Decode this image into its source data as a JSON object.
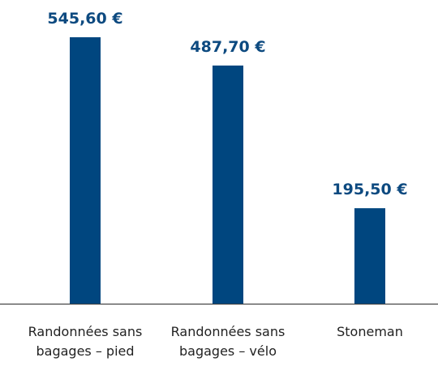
{
  "chart_data": {
    "type": "bar",
    "categories": [
      "Randonnées sans bagages – pied",
      "Randonnées sans bagages – vélo",
      "Stoneman"
    ],
    "values": [
      545.6,
      487.7,
      195.5
    ],
    "value_labels": [
      "545,60 €",
      "487,70 €",
      "195,50 €"
    ],
    "color": "#00467f"
  }
}
